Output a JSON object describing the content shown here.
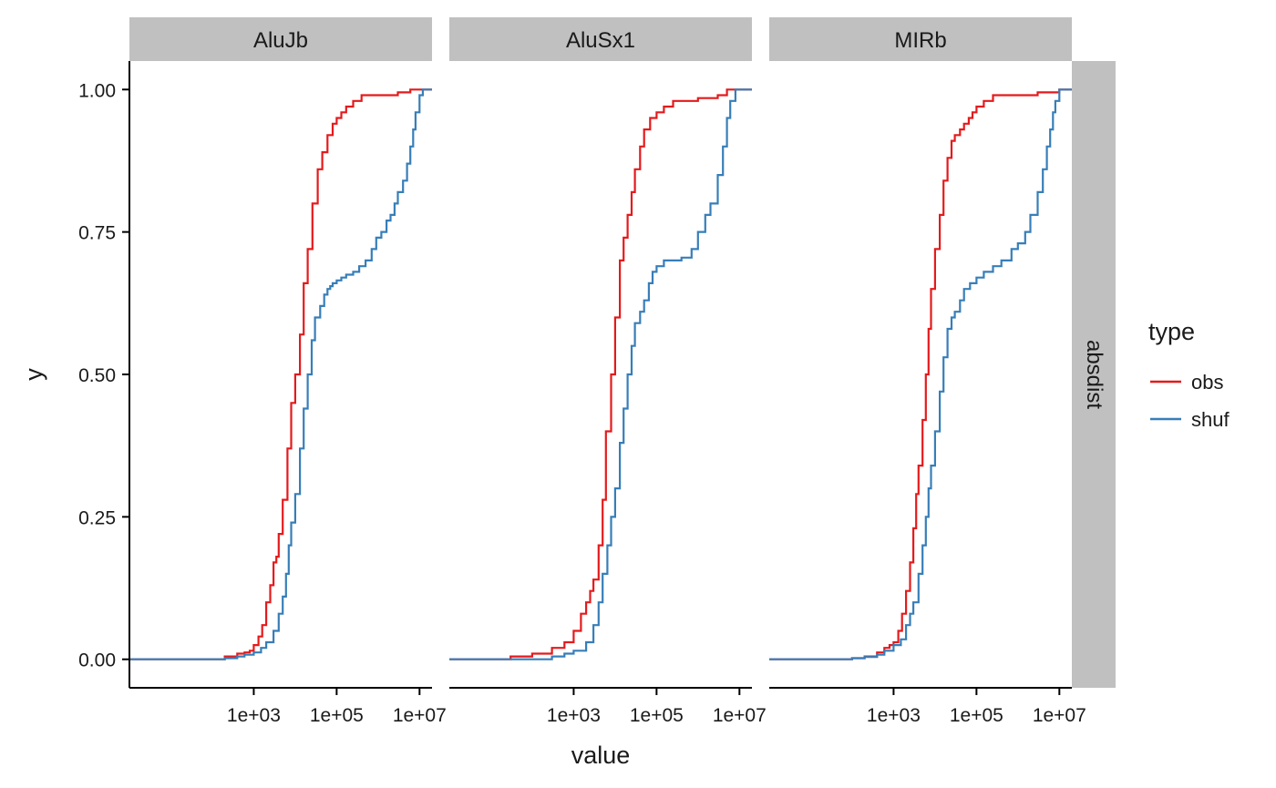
{
  "chart_data": {
    "type": "line",
    "x_scale": "log10",
    "xlabel": "value",
    "ylabel": "y",
    "xlim": [
      1,
      20000000
    ],
    "ylim": [
      -0.05,
      1.05
    ],
    "x_ticks": [
      {
        "value": 1000,
        "label": "1e+03"
      },
      {
        "value": 100000,
        "label": "1e+05"
      },
      {
        "value": 10000000,
        "label": "1e+07"
      }
    ],
    "y_ticks": [
      {
        "value": 0,
        "label": "0.00"
      },
      {
        "value": 0.25,
        "label": "0.25"
      },
      {
        "value": 0.5,
        "label": "0.50"
      },
      {
        "value": 0.75,
        "label": "0.75"
      },
      {
        "value": 1,
        "label": "1.00"
      }
    ],
    "row_facet_label": "absdist",
    "grid": false,
    "legend": {
      "title": "type",
      "placement": "right",
      "entries": [
        {
          "name": "obs",
          "color": "#E41A1C"
        },
        {
          "name": "shuf",
          "color": "#377EB8"
        }
      ]
    },
    "panels": [
      {
        "label": "AluJb",
        "series": [
          {
            "name": "obs",
            "color": "#E41A1C",
            "x": [
              1,
              100,
              200,
              400,
              600,
              800,
              1000,
              1300,
              1600,
              2000,
              2500,
              3000,
              3500,
              4000,
              5000,
              6500,
              8000,
              10000,
              13000,
              16000,
              20000,
              26000,
              35000,
              45000,
              60000,
              80000,
              100000,
              130000,
              170000,
              250000,
              400000,
              700000,
              1500000,
              3000000,
              6000000,
              10000000,
              20000000
            ],
            "y": [
              0,
              0,
              0.005,
              0.01,
              0.012,
              0.015,
              0.025,
              0.04,
              0.06,
              0.1,
              0.13,
              0.17,
              0.18,
              0.22,
              0.28,
              0.37,
              0.45,
              0.5,
              0.57,
              0.66,
              0.72,
              0.8,
              0.86,
              0.89,
              0.92,
              0.94,
              0.95,
              0.96,
              0.97,
              0.98,
              0.99,
              0.99,
              0.99,
              0.995,
              1,
              1,
              1
            ]
          },
          {
            "name": "shuf",
            "color": "#377EB8",
            "x": [
              1,
              100,
              200,
              400,
              600,
              1000,
              1500,
              2000,
              3000,
              4000,
              5000,
              6000,
              7000,
              8000,
              10000,
              13000,
              16000,
              20000,
              25000,
              30000,
              40000,
              50000,
              60000,
              70000,
              80000,
              100000,
              130000,
              170000,
              250000,
              350000,
              500000,
              700000,
              900000,
              1200000,
              1600000,
              2000000,
              2500000,
              3000000,
              4000000,
              5000000,
              6000000,
              7000000,
              8000000,
              10000000,
              12000000,
              20000000
            ],
            "y": [
              0,
              0,
              0.002,
              0.005,
              0.008,
              0.012,
              0.02,
              0.03,
              0.05,
              0.08,
              0.11,
              0.15,
              0.2,
              0.24,
              0.29,
              0.37,
              0.44,
              0.5,
              0.56,
              0.6,
              0.62,
              0.64,
              0.65,
              0.655,
              0.66,
              0.665,
              0.67,
              0.675,
              0.68,
              0.69,
              0.7,
              0.72,
              0.74,
              0.75,
              0.77,
              0.78,
              0.8,
              0.82,
              0.84,
              0.87,
              0.9,
              0.93,
              0.96,
              0.99,
              1,
              1
            ]
          }
        ]
      },
      {
        "label": "AluSx1",
        "series": [
          {
            "name": "obs",
            "color": "#E41A1C",
            "x": [
              1,
              10,
              30,
              100,
              300,
              600,
              1000,
              1500,
              2000,
              2500,
              3000,
              4000,
              5000,
              6000,
              8000,
              10000,
              13000,
              16000,
              20000,
              25000,
              30000,
              40000,
              50000,
              70000,
              100000,
              150000,
              250000,
              500000,
              1000000,
              3000000,
              5000000,
              10000000,
              20000000
            ],
            "y": [
              0,
              0,
              0.005,
              0.01,
              0.02,
              0.03,
              0.05,
              0.08,
              0.1,
              0.12,
              0.14,
              0.2,
              0.28,
              0.4,
              0.5,
              0.6,
              0.7,
              0.74,
              0.78,
              0.82,
              0.86,
              0.9,
              0.93,
              0.95,
              0.96,
              0.97,
              0.98,
              0.98,
              0.985,
              0.99,
              1,
              1,
              1
            ]
          },
          {
            "name": "shuf",
            "color": "#377EB8",
            "x": [
              1,
              100,
              300,
              600,
              1000,
              2000,
              3000,
              4000,
              5000,
              6500,
              8000,
              10000,
              13000,
              16000,
              20000,
              25000,
              30000,
              40000,
              50000,
              65000,
              80000,
              100000,
              150000,
              250000,
              400000,
              700000,
              1000000,
              1500000,
              2000000,
              3000000,
              4000000,
              5000000,
              6000000,
              8000000,
              10000000,
              20000000
            ],
            "y": [
              0,
              0,
              0.005,
              0.01,
              0.015,
              0.03,
              0.06,
              0.1,
              0.15,
              0.2,
              0.25,
              0.3,
              0.38,
              0.44,
              0.5,
              0.55,
              0.59,
              0.61,
              0.63,
              0.66,
              0.68,
              0.69,
              0.7,
              0.7,
              0.705,
              0.72,
              0.75,
              0.78,
              0.8,
              0.85,
              0.9,
              0.95,
              0.98,
              1,
              1,
              1
            ]
          }
        ]
      },
      {
        "label": "MIRb",
        "series": [
          {
            "name": "obs",
            "color": "#E41A1C",
            "x": [
              1,
              50,
              100,
              200,
              400,
              600,
              800,
              1000,
              1300,
              1600,
              2000,
              2500,
              3000,
              3500,
              4000,
              5000,
              6000,
              7000,
              8000,
              10000,
              13000,
              16000,
              20000,
              25000,
              30000,
              40000,
              50000,
              65000,
              80000,
              100000,
              150000,
              250000,
              500000,
              1000000,
              3000000,
              10000000,
              20000000
            ],
            "y": [
              0,
              0,
              0.002,
              0.005,
              0.012,
              0.02,
              0.025,
              0.03,
              0.05,
              0.08,
              0.12,
              0.17,
              0.23,
              0.29,
              0.34,
              0.42,
              0.5,
              0.58,
              0.65,
              0.72,
              0.78,
              0.84,
              0.88,
              0.91,
              0.92,
              0.93,
              0.94,
              0.95,
              0.96,
              0.97,
              0.98,
              0.99,
              0.99,
              0.99,
              0.995,
              1,
              1
            ]
          },
          {
            "name": "shuf",
            "color": "#377EB8",
            "x": [
              1,
              50,
              100,
              200,
              400,
              600,
              1000,
              1500,
              2000,
              2500,
              3000,
              4000,
              5000,
              6000,
              7000,
              8000,
              10000,
              13000,
              16000,
              20000,
              25000,
              30000,
              40000,
              50000,
              70000,
              100000,
              150000,
              250000,
              400000,
              700000,
              1000000,
              1500000,
              2000000,
              3000000,
              4000000,
              5000000,
              6000000,
              7000000,
              8000000,
              10000000,
              20000000
            ],
            "y": [
              0,
              0,
              0.002,
              0.004,
              0.008,
              0.015,
              0.025,
              0.035,
              0.06,
              0.08,
              0.1,
              0.15,
              0.2,
              0.25,
              0.3,
              0.34,
              0.4,
              0.47,
              0.53,
              0.58,
              0.6,
              0.61,
              0.63,
              0.65,
              0.66,
              0.67,
              0.68,
              0.69,
              0.7,
              0.72,
              0.73,
              0.75,
              0.78,
              0.82,
              0.86,
              0.9,
              0.93,
              0.96,
              0.98,
              1,
              1
            ]
          }
        ]
      }
    ]
  }
}
